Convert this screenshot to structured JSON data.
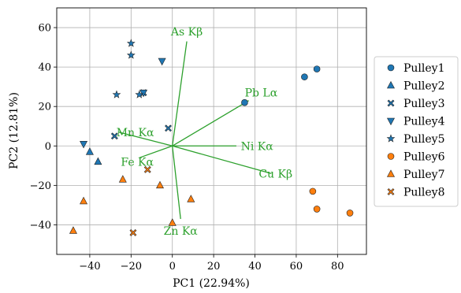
{
  "chart_data": {
    "type": "scatter",
    "title": "",
    "xlabel": "PC1 (22.94%)",
    "ylabel": "PC2 (12.81%)",
    "xlim": [
      -56,
      94
    ],
    "ylim": [
      -55,
      70
    ],
    "xticks": [
      -40,
      -20,
      0,
      20,
      40,
      60,
      80
    ],
    "yticks": [
      -40,
      -20,
      0,
      20,
      40,
      60
    ],
    "xtick_labels": [
      "−40",
      "−20",
      "0",
      "20",
      "40",
      "60",
      "80"
    ],
    "ytick_labels": [
      "−40",
      "−20",
      "0",
      "20",
      "40",
      "60"
    ],
    "grid": true,
    "legend_position": "right",
    "colors": {
      "blue": "#1f77b4",
      "orange": "#ff7f0e",
      "loading": "#2ca02c"
    },
    "series": [
      {
        "name": "Pulley1",
        "marker": "circle",
        "color": "#1f77b4",
        "points": [
          [
            35,
            22
          ],
          [
            64,
            35
          ],
          [
            70,
            39
          ]
        ]
      },
      {
        "name": "Pulley2",
        "marker": "triangle-up",
        "color": "#1f77b4",
        "points": [
          [
            -40,
            -3
          ],
          [
            -36,
            -8
          ]
        ]
      },
      {
        "name": "Pulley3",
        "marker": "x",
        "color": "#1f77b4",
        "points": [
          [
            -28,
            5
          ],
          [
            -14,
            27
          ],
          [
            -2,
            9
          ]
        ]
      },
      {
        "name": "Pulley4",
        "marker": "triangle-down",
        "color": "#1f77b4",
        "points": [
          [
            -43,
            1
          ],
          [
            -14,
            27
          ],
          [
            -5,
            43
          ]
        ]
      },
      {
        "name": "Pulley5",
        "marker": "star",
        "color": "#1f77b4",
        "points": [
          [
            -20,
            52
          ],
          [
            -20,
            46
          ],
          [
            -27,
            26
          ],
          [
            -16,
            26
          ]
        ]
      },
      {
        "name": "Pulley6",
        "marker": "circle",
        "color": "#ff7f0e",
        "points": [
          [
            68,
            -23
          ],
          [
            70,
            -32
          ],
          [
            86,
            -34
          ]
        ]
      },
      {
        "name": "Pulley7",
        "marker": "triangle-up",
        "color": "#ff7f0e",
        "points": [
          [
            -48,
            -43
          ],
          [
            -43,
            -28
          ],
          [
            -24,
            -17
          ],
          [
            -6,
            -20
          ],
          [
            0,
            -39
          ],
          [
            9,
            -27
          ]
        ]
      },
      {
        "name": "Pulley8",
        "marker": "x",
        "color": "#ff7f0e",
        "points": [
          [
            -12,
            -12
          ],
          [
            -19,
            -44
          ]
        ]
      }
    ],
    "loadings": [
      {
        "label": "As Kβ",
        "x": 7,
        "y": 53,
        "label_x": 7,
        "label_y": 58
      },
      {
        "label": "Pb Lα",
        "x": 37,
        "y": 23,
        "label_x": 43,
        "label_y": 27
      },
      {
        "label": "Mn Kα",
        "x": -26,
        "y": 7,
        "label_x": -18,
        "label_y": 7
      },
      {
        "label": "Ni Kα",
        "x": 31,
        "y": 0,
        "label_x": 41,
        "label_y": 0
      },
      {
        "label": "Fe Kα",
        "x": -16,
        "y": -6,
        "label_x": -17,
        "label_y": -8
      },
      {
        "label": "Cu Kβ",
        "x": 48,
        "y": -14,
        "label_x": 50,
        "label_y": -14
      },
      {
        "label": "Zn Kα",
        "x": 4,
        "y": -37,
        "label_x": 4,
        "label_y": -43
      }
    ]
  }
}
